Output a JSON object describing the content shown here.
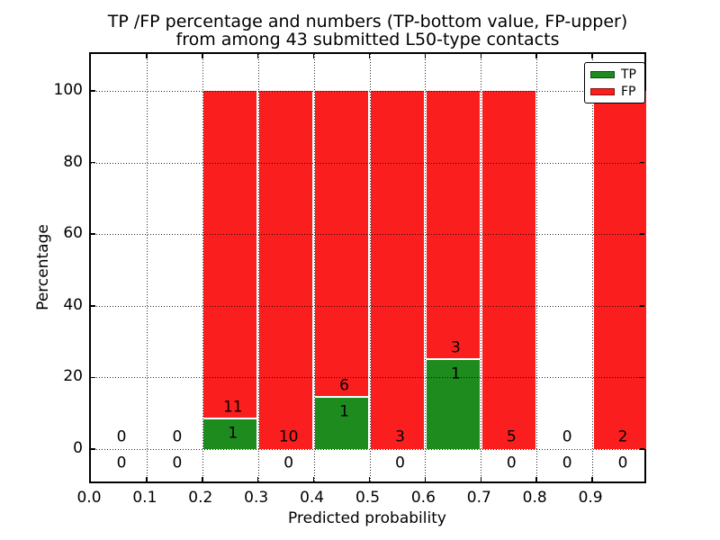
{
  "chart_data": {
    "type": "bar",
    "stacked": true,
    "title_line1": "TP /FP percentage and numbers (TP-bottom value, FP-upper)",
    "title_line2": "from among 43 submitted L50-type contacts",
    "xlabel": "Predicted probability",
    "ylabel": "Percentage",
    "total_submitted": 43,
    "xlim": [
      0.0,
      1.0
    ],
    "ylim": [
      -10,
      110
    ],
    "grid": "dotted",
    "ytick_labels": [
      "0",
      "20",
      "40",
      "60",
      "80",
      "100"
    ],
    "ytick_values": [
      0,
      20,
      40,
      60,
      80,
      100
    ],
    "xtick_labels": [
      "0.0",
      "0.1",
      "0.2",
      "0.3",
      "0.4",
      "0.5",
      "0.6",
      "0.7",
      "0.8",
      "0.9"
    ],
    "xtick_values": [
      0.0,
      0.1,
      0.2,
      0.3,
      0.4,
      0.5,
      0.6,
      0.7,
      0.8,
      0.9
    ],
    "colors": {
      "tp": "#1e8b1e",
      "fp": "#fa1e1e"
    },
    "legend": {
      "position": "upper right",
      "entries": [
        {
          "label": "TP",
          "color": "#1e8b1e"
        },
        {
          "label": "FP",
          "color": "#fa1e1e"
        }
      ]
    },
    "bins": [
      {
        "range": [
          0.0,
          0.1
        ],
        "tp": 0,
        "fp": 0,
        "tp_pct": 0,
        "fp_pct": 0
      },
      {
        "range": [
          0.1,
          0.2
        ],
        "tp": 0,
        "fp": 0,
        "tp_pct": 0,
        "fp_pct": 0
      },
      {
        "range": [
          0.2,
          0.3
        ],
        "tp": 1,
        "fp": 11,
        "tp_pct": 8.3,
        "fp_pct": 91.7
      },
      {
        "range": [
          0.3,
          0.4
        ],
        "tp": 0,
        "fp": 10,
        "tp_pct": 0,
        "fp_pct": 100
      },
      {
        "range": [
          0.4,
          0.5
        ],
        "tp": 1,
        "fp": 6,
        "tp_pct": 14.3,
        "fp_pct": 85.7
      },
      {
        "range": [
          0.5,
          0.6
        ],
        "tp": 0,
        "fp": 3,
        "tp_pct": 0,
        "fp_pct": 100
      },
      {
        "range": [
          0.6,
          0.7
        ],
        "tp": 1,
        "fp": 3,
        "tp_pct": 25,
        "fp_pct": 75
      },
      {
        "range": [
          0.7,
          0.8
        ],
        "tp": 0,
        "fp": 5,
        "tp_pct": 0,
        "fp_pct": 100
      },
      {
        "range": [
          0.8,
          0.9
        ],
        "tp": 0,
        "fp": 0,
        "tp_pct": 0,
        "fp_pct": 0
      },
      {
        "range": [
          0.9,
          1.0
        ],
        "tp": 0,
        "fp": 2,
        "tp_pct": 0,
        "fp_pct": 100
      }
    ]
  }
}
